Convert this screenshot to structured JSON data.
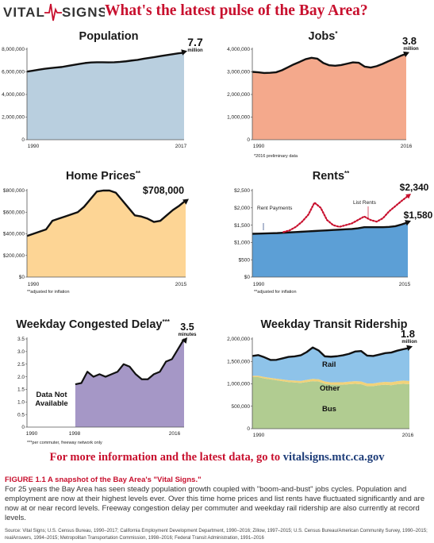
{
  "header": {
    "logo_left": "VITAL",
    "logo_right": "SIGNS",
    "headline": "What's the latest pulse of the Bay Area?"
  },
  "colors": {
    "accent_red": "#c8102e",
    "navy": "#1d3c78",
    "population": "#b9cfdf",
    "jobs": "#f4a98c",
    "home_prices": "#fdd595",
    "rents": "#5c9fd6",
    "congestion": "#a597c6",
    "rail": "#8ec3e9",
    "other": "#f1d27a",
    "bus": "#b1cc91"
  },
  "chart_data": [
    {
      "id": "population",
      "type": "area",
      "title": "Population",
      "title_suffix": "",
      "x_ticks": [
        "1990",
        "2017"
      ],
      "y_ticks": [
        "0",
        "2,000,000",
        "4,000,000",
        "6,000,000",
        "8,000,000"
      ],
      "ylim": [
        0,
        8000000
      ],
      "x": [
        1990,
        1991,
        1992,
        1993,
        1994,
        1995,
        1996,
        1997,
        1998,
        1999,
        2000,
        2001,
        2002,
        2003,
        2004,
        2005,
        2006,
        2007,
        2008,
        2009,
        2010,
        2011,
        2012,
        2013,
        2014,
        2015,
        2016,
        2017
      ],
      "values": [
        6020000,
        6100000,
        6190000,
        6270000,
        6330000,
        6380000,
        6430000,
        6520000,
        6610000,
        6700000,
        6780000,
        6830000,
        6850000,
        6850000,
        6840000,
        6850000,
        6880000,
        6930000,
        7000000,
        7060000,
        7150000,
        7230000,
        7310000,
        7400000,
        7480000,
        7560000,
        7640000,
        7700000
      ],
      "end_value": "7.7",
      "end_unit": "million",
      "footnote": ""
    },
    {
      "id": "jobs",
      "type": "area",
      "title": "Jobs",
      "title_suffix": "*",
      "x_ticks": [
        "1990",
        "2016"
      ],
      "y_ticks": [
        "0",
        "1,000,000",
        "2,000,000",
        "3,000,000",
        "4,000,000"
      ],
      "ylim": [
        0,
        4000000
      ],
      "x": [
        1990,
        1991,
        1992,
        1993,
        1994,
        1995,
        1996,
        1997,
        1998,
        1999,
        2000,
        2001,
        2002,
        2003,
        2004,
        2005,
        2006,
        2007,
        2008,
        2009,
        2010,
        2011,
        2012,
        2013,
        2014,
        2015,
        2016
      ],
      "values": [
        3000000,
        2980000,
        2950000,
        2960000,
        2980000,
        3070000,
        3200000,
        3330000,
        3440000,
        3560000,
        3620000,
        3580000,
        3390000,
        3290000,
        3270000,
        3300000,
        3360000,
        3420000,
        3400000,
        3230000,
        3190000,
        3250000,
        3350000,
        3470000,
        3580000,
        3700000,
        3800000
      ],
      "end_value": "3.8",
      "end_unit": "million",
      "footnote": "*2016 preliminary data"
    },
    {
      "id": "home_prices",
      "type": "area",
      "title": "Home Prices",
      "title_suffix": "**",
      "x_ticks": [
        "1990",
        "2015"
      ],
      "y_ticks": [
        "$0",
        "$200,000",
        "$400,000",
        "$600,000",
        "$800,000"
      ],
      "ylim": [
        0,
        800000
      ],
      "x": [
        1990,
        1991,
        1992,
        1993,
        1994,
        1995,
        1996,
        1997,
        1998,
        1999,
        2000,
        2001,
        2002,
        2003,
        2004,
        2005,
        2006,
        2007,
        2008,
        2009,
        2010,
        2011,
        2012,
        2013,
        2014,
        2015
      ],
      "values": [
        380000,
        400000,
        420000,
        440000,
        520000,
        540000,
        560000,
        580000,
        600000,
        650000,
        720000,
        790000,
        800000,
        800000,
        780000,
        710000,
        640000,
        570000,
        560000,
        540000,
        510000,
        520000,
        570000,
        620000,
        660000,
        708000
      ],
      "end_value": "$708,000",
      "end_unit": "",
      "footnote": "**adjusted for inflation"
    },
    {
      "id": "rents",
      "type": "area",
      "title": "Rents",
      "title_suffix": "**",
      "x_ticks": [
        "1990",
        "2015"
      ],
      "y_ticks": [
        "$0",
        "$500",
        "$1,000",
        "$1,500",
        "$2,000",
        "$2,500"
      ],
      "ylim": [
        0,
        2500
      ],
      "x": [
        1990,
        1991,
        1992,
        1993,
        1994,
        1995,
        1996,
        1997,
        1998,
        1999,
        2000,
        2001,
        2002,
        2003,
        2004,
        2005,
        2006,
        2007,
        2008,
        2009,
        2010,
        2011,
        2012,
        2013,
        2014,
        2015
      ],
      "series": [
        {
          "name": "Rent Payments",
          "values": [
            1250,
            1255,
            1260,
            1265,
            1270,
            1280,
            1290,
            1300,
            1310,
            1320,
            1330,
            1340,
            1350,
            1360,
            1370,
            1380,
            1390,
            1410,
            1440,
            1440,
            1440,
            1440,
            1450,
            1470,
            1520,
            1580
          ],
          "end_value": "$1,580"
        },
        {
          "name": "List Rents",
          "x": [
            1995,
            1996,
            1997,
            1998,
            1999,
            2000,
            2001,
            2002,
            2003,
            2004,
            2005,
            2006,
            2007,
            2008,
            2009,
            2010,
            2011,
            2012,
            2013,
            2014,
            2015
          ],
          "values": [
            1300,
            1350,
            1450,
            1600,
            1800,
            2150,
            2000,
            1650,
            1500,
            1450,
            1500,
            1550,
            1650,
            1750,
            1650,
            1600,
            1700,
            1900,
            2050,
            2200,
            2340
          ],
          "end_value": "$2,340"
        }
      ],
      "footnote": "**adjusted for inflation"
    },
    {
      "id": "congestion",
      "type": "area",
      "title": "Weekday Congested Delay",
      "title_suffix": "***",
      "x_ticks": [
        "1990",
        "1998",
        "2016"
      ],
      "y_ticks": [
        "0",
        "0.5",
        "1.0",
        "1.5",
        "2.0",
        "2.5",
        "3.0",
        "3.5"
      ],
      "ylim": [
        0,
        3.5
      ],
      "x": [
        1998,
        1999,
        2000,
        2001,
        2002,
        2003,
        2004,
        2005,
        2006,
        2007,
        2008,
        2009,
        2010,
        2011,
        2012,
        2013,
        2014,
        2015,
        2016
      ],
      "values": [
        1.7,
        1.75,
        2.2,
        2.0,
        2.1,
        2.0,
        2.1,
        2.2,
        2.5,
        2.4,
        2.1,
        1.9,
        1.9,
        2.1,
        2.2,
        2.6,
        2.7,
        3.1,
        3.5
      ],
      "missing_label_1": "Data Not",
      "missing_label_2": "Available",
      "end_value": "3.5",
      "end_unit": "minutes",
      "footnote": "***per commuter, freeway network only"
    },
    {
      "id": "transit",
      "type": "area",
      "title": "Weekday Transit Ridership",
      "title_suffix": "",
      "x_ticks": [
        "1990",
        "2016"
      ],
      "y_ticks": [
        "0",
        "500,000",
        "1,000,000",
        "1,500,000",
        "2,000,000"
      ],
      "ylim": [
        0,
        2000000
      ],
      "x": [
        1990,
        1991,
        1992,
        1993,
        1994,
        1995,
        1996,
        1997,
        1998,
        1999,
        2000,
        2001,
        2002,
        2003,
        2004,
        2005,
        2006,
        2007,
        2008,
        2009,
        2010,
        2011,
        2012,
        2013,
        2014,
        2015,
        2016
      ],
      "series": [
        {
          "name": "Bus",
          "values": [
            1150000,
            1150000,
            1120000,
            1100000,
            1080000,
            1060000,
            1040000,
            1030000,
            1020000,
            1040000,
            1060000,
            1050000,
            1000000,
            980000,
            980000,
            980000,
            990000,
            1000000,
            990000,
            950000,
            950000,
            970000,
            980000,
            970000,
            990000,
            1000000,
            990000
          ]
        },
        {
          "name": "Other",
          "values": [
            30000,
            30000,
            32000,
            33000,
            35000,
            38000,
            40000,
            42000,
            45000,
            48000,
            50000,
            52000,
            53000,
            54000,
            55000,
            56000,
            58000,
            60000,
            62000,
            60000,
            60000,
            62000,
            65000,
            68000,
            70000,
            72000,
            75000
          ]
        },
        {
          "name": "Rail",
          "values": [
            440000,
            460000,
            440000,
            400000,
            420000,
            470000,
            520000,
            540000,
            570000,
            620000,
            700000,
            640000,
            560000,
            570000,
            580000,
            600000,
            620000,
            660000,
            680000,
            620000,
            610000,
            620000,
            640000,
            660000,
            680000,
            700000,
            735000
          ]
        }
      ],
      "end_value": "1.8",
      "end_unit": "million",
      "footnote": ""
    }
  ],
  "info_line": {
    "text": "For more information and the latest data, go to ",
    "url": "vitalsigns.mtc.ca.gov"
  },
  "figure": {
    "title": "FIGURE 1.1  A snapshot of the Bay Area's \"Vital Signs.\"",
    "text": "For 25 years the Bay Area has seen steady population growth coupled with \"boom-and-bust\" jobs cycles. Population and employment are now at their highest levels ever. Over this time home prices and list rents have fluctuated significantly and are now at or near record levels. Freeway congestion delay per commuter and weekday rail ridership are also currently at record levels.",
    "source": "Source: Vital Signs; U.S. Census Bureau, 1990–2017; California Employment Development Department, 1990–2016; Zillow, 1997–2015; U.S. Census Bureau/American Community Survey, 1990–2015; realAnswers, 1994–2015; Metropolitan Transportation Commission, 1998–2016; Federal Transit Administration, 1991–2016"
  }
}
